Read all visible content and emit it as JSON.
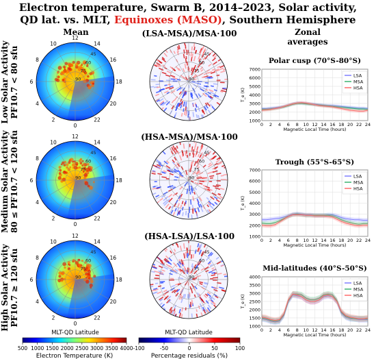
{
  "title": {
    "line1": "Electron temperature, Swarm B, 2014–2023, Solar activity,",
    "line2_pre": "QD lat. vs. MLT, ",
    "line2_red": "Equinoxes (MASO)",
    "line2_post": ", Southern Hemisphere"
  },
  "columns": {
    "mean": "Mean",
    "zonal_line1": "Zonal",
    "zonal_line2": "averages"
  },
  "row_labels": [
    {
      "line1": "Low Solar Activity",
      "line2": "PF10.7 < 80 sfu"
    },
    {
      "line1": "Medium Solar Activity",
      "line2": "80 ≤ PF10.7 < 120 sfu"
    },
    {
      "line1": "High Solar Activity",
      "line2": "PF10.7 ≥ 120 sfu"
    }
  ],
  "residual_titles": [
    "(LSA-MSA)/MSA·100",
    "(HSA-MSA)/MSA·100",
    "(HSA-LSA)/LSA·100"
  ],
  "polar": {
    "mlt_labels": [
      "0",
      "2",
      "4",
      "6",
      "8",
      "10",
      "12",
      "14",
      "16",
      "18",
      "20",
      "22"
    ],
    "lat_labels": [
      "90",
      "75",
      "60",
      "45"
    ],
    "axis_caption": "MLT-QD Latitude"
  },
  "colorbars": {
    "temperature": {
      "label": "Electron Temperature (K)",
      "ticks": [
        500,
        1000,
        1500,
        2000,
        2500,
        3000,
        3500,
        4000
      ],
      "colormap": "jet"
    },
    "residual": {
      "label": "Percentage residuals (%)",
      "ticks": [
        -100,
        -50,
        0,
        50,
        100
      ],
      "colormap": "bwr"
    }
  },
  "colors": {
    "LSA": "#7f7fff",
    "MSA": "#3cb371",
    "HSA": "#ff6b6b",
    "title_red": "#e0221b"
  },
  "chart_data": [
    {
      "type": "line",
      "title": "Polar cusp (70°S-80°S)",
      "xlabel": "Magnetic Local Time (hours)",
      "ylabel": "T_e (K)",
      "xlim": [
        0,
        24
      ],
      "ylim": [
        1000,
        7000
      ],
      "xticks": [
        0,
        2,
        4,
        6,
        8,
        10,
        12,
        14,
        16,
        18,
        20,
        22,
        24
      ],
      "yticks": [
        1000,
        2000,
        3000,
        4000,
        5000,
        6000,
        7000
      ],
      "legend": "top-right",
      "x": [
        0,
        1,
        2,
        3,
        4,
        5,
        6,
        7,
        8,
        9,
        10,
        11,
        12,
        13,
        14,
        15,
        16,
        17,
        18,
        19,
        20,
        21,
        22,
        23,
        24
      ],
      "series": [
        {
          "name": "LSA",
          "values": [
            2400,
            2400,
            2450,
            2500,
            2550,
            2650,
            2800,
            2950,
            3050,
            3050,
            3000,
            2950,
            2900,
            2850,
            2800,
            2750,
            2750,
            2700,
            2650,
            2600,
            2550,
            2500,
            2450,
            2450,
            2400
          ]
        },
        {
          "name": "MSA",
          "values": [
            2300,
            2300,
            2350,
            2400,
            2500,
            2600,
            2750,
            2900,
            3000,
            3000,
            2950,
            2900,
            2850,
            2800,
            2750,
            2700,
            2650,
            2600,
            2550,
            2500,
            2450,
            2400,
            2350,
            2350,
            2300
          ]
        },
        {
          "name": "HSA",
          "values": [
            2200,
            2250,
            2300,
            2400,
            2500,
            2650,
            2800,
            2950,
            3050,
            3100,
            3050,
            2950,
            2850,
            2750,
            2700,
            2650,
            2600,
            2500,
            2400,
            2300,
            2200,
            2150,
            2100,
            2100,
            2200
          ]
        }
      ]
    },
    {
      "type": "line",
      "title": "Trough (55°S-65°S)",
      "xlabel": "Magnetic Local Time (hours)",
      "ylabel": "T_e (K)",
      "xlim": [
        0,
        24
      ],
      "ylim": [
        1000,
        7000
      ],
      "xticks": [
        0,
        2,
        4,
        6,
        8,
        10,
        12,
        14,
        16,
        18,
        20,
        22,
        24
      ],
      "yticks": [
        1000,
        2000,
        3000,
        4000,
        5000,
        6000,
        7000
      ],
      "legend": "top-right",
      "x": [
        0,
        1,
        2,
        3,
        4,
        5,
        6,
        7,
        8,
        9,
        10,
        11,
        12,
        13,
        14,
        15,
        16,
        17,
        18,
        19,
        20,
        21,
        22,
        23,
        24
      ],
      "series": [
        {
          "name": "LSA",
          "values": [
            2500,
            2500,
            2550,
            2600,
            2650,
            2750,
            2850,
            3000,
            3050,
            3000,
            2950,
            2950,
            2900,
            2900,
            2900,
            2950,
            2950,
            2850,
            2700,
            2600,
            2550,
            2500,
            2500,
            2450,
            2450
          ]
        },
        {
          "name": "MSA",
          "values": [
            2200,
            2150,
            2150,
            2250,
            2400,
            2600,
            2800,
            2950,
            3000,
            2950,
            2900,
            2900,
            2900,
            2900,
            2900,
            2900,
            2850,
            2700,
            2500,
            2350,
            2250,
            2150,
            2100,
            2150,
            2150
          ]
        },
        {
          "name": "HSA",
          "values": [
            2000,
            1950,
            1950,
            2050,
            2300,
            2550,
            2800,
            2950,
            2950,
            2950,
            2900,
            2900,
            2850,
            2850,
            2850,
            2800,
            2750,
            2550,
            2350,
            2200,
            2100,
            2000,
            1950,
            2000,
            2000
          ]
        }
      ]
    },
    {
      "type": "line",
      "title": "Mid-latitudes (40°S-50°S)",
      "xlabel": "Magnetic Local Time (hours)",
      "ylabel": "T_e (K)",
      "xlim": [
        0,
        24
      ],
      "ylim": [
        1000,
        4000
      ],
      "xticks": [
        0,
        2,
        4,
        6,
        8,
        10,
        12,
        14,
        16,
        18,
        20,
        22,
        24
      ],
      "yticks": [
        1000,
        1500,
        2000,
        2500,
        3000,
        3500,
        4000
      ],
      "legend": "top-right",
      "x": [
        0,
        1,
        2,
        3,
        4,
        5,
        6,
        7,
        8,
        9,
        10,
        11,
        12,
        13,
        14,
        15,
        16,
        17,
        18,
        19,
        20,
        21,
        22,
        23,
        24
      ],
      "series": [
        {
          "name": "LSA",
          "values": [
            1450,
            1400,
            1300,
            1250,
            1300,
            1650,
            2500,
            2900,
            2850,
            2800,
            2600,
            2500,
            2500,
            2600,
            2800,
            2850,
            2800,
            2500,
            1800,
            1550,
            1450,
            1450,
            1400,
            1400,
            1400
          ]
        },
        {
          "name": "MSA",
          "values": [
            1500,
            1450,
            1350,
            1300,
            1350,
            1700,
            2550,
            2950,
            2950,
            2900,
            2700,
            2600,
            2600,
            2700,
            2900,
            2950,
            2900,
            2550,
            1850,
            1600,
            1500,
            1450,
            1450,
            1450,
            1450
          ]
        },
        {
          "name": "HSA",
          "values": [
            1550,
            1500,
            1400,
            1350,
            1400,
            1750,
            2600,
            2950,
            2900,
            2800,
            2600,
            2500,
            2500,
            2600,
            2850,
            2900,
            2800,
            2500,
            1900,
            1650,
            1550,
            1500,
            1450,
            1450,
            1500
          ]
        }
      ]
    }
  ]
}
